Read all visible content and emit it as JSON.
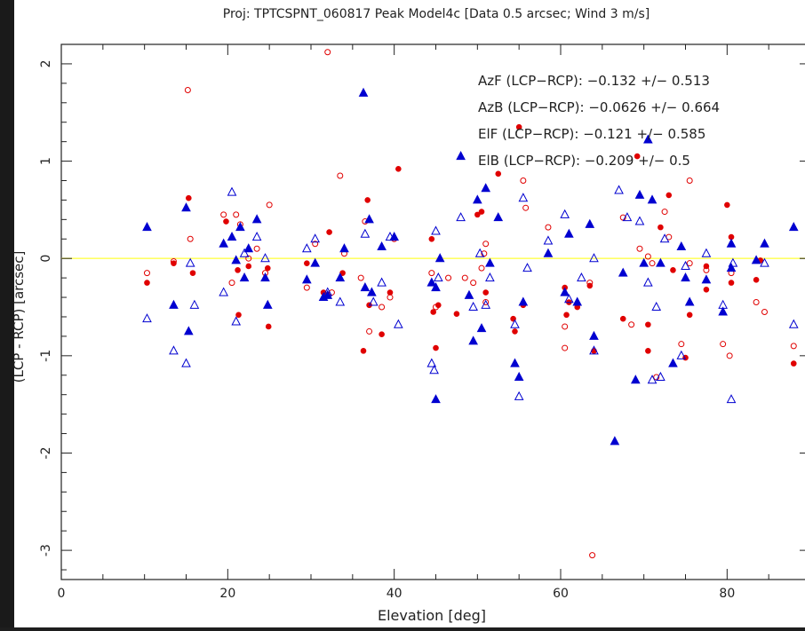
{
  "chart_data": {
    "type": "scatter",
    "title": "Proj: TPTCSPNT_060817   Peak   Model4c [Data 0.5 arcsec; Wind 3 m/s]",
    "xlabel": "Elevation [deg]",
    "ylabel": "(LCP - RCP) [arcsec]",
    "xlim": [
      0,
      90
    ],
    "ylim": [
      -3.3,
      2.2
    ],
    "xticks": [
      0,
      20,
      40,
      60,
      80
    ],
    "yticks": [
      -3,
      -2,
      -1,
      0,
      1,
      2
    ],
    "grid": false,
    "zero_line_color": "#ffff66",
    "annotations": [
      "AzF (LCP−RCP): −0.132 +/− 0.513",
      "AzB (LCP−RCP): −0.0626 +/− 0.664",
      "ElF (LCP−RCP): −0.121 +/− 0.585",
      "ElB (LCP−RCP): −0.209 +/− 0.5"
    ],
    "series": [
      {
        "marker": "filled-circle",
        "color": "#e00000",
        "points": [
          [
            10.3,
            -0.25
          ],
          [
            13.5,
            -0.05
          ],
          [
            15.3,
            0.62
          ],
          [
            15.8,
            -0.15
          ],
          [
            19.8,
            0.38
          ],
          [
            21.2,
            -0.12
          ],
          [
            21.3,
            -0.58
          ],
          [
            22.5,
            -0.08
          ],
          [
            24.8,
            -0.1
          ],
          [
            24.9,
            -0.7
          ],
          [
            29.5,
            -0.05
          ],
          [
            31.5,
            -0.35
          ],
          [
            32.2,
            0.27
          ],
          [
            33.8,
            -0.15
          ],
          [
            36.3,
            -0.95
          ],
          [
            36.8,
            0.6
          ],
          [
            37.0,
            -0.48
          ],
          [
            38.5,
            -0.78
          ],
          [
            39.5,
            -0.35
          ],
          [
            40.5,
            0.92
          ],
          [
            44.5,
            0.2
          ],
          [
            44.7,
            -0.55
          ],
          [
            45.0,
            -0.92
          ],
          [
            45.3,
            -0.48
          ],
          [
            47.5,
            -0.57
          ],
          [
            50.0,
            0.45
          ],
          [
            50.5,
            0.48
          ],
          [
            51.0,
            -0.35
          ],
          [
            52.5,
            0.87
          ],
          [
            54.3,
            -0.62
          ],
          [
            54.5,
            -0.75
          ],
          [
            55.0,
            1.35
          ],
          [
            55.5,
            -0.48
          ],
          [
            60.5,
            -0.3
          ],
          [
            60.7,
            -0.58
          ],
          [
            61.0,
            -0.45
          ],
          [
            62.0,
            -0.5
          ],
          [
            63.5,
            -0.28
          ],
          [
            64.0,
            -0.95
          ],
          [
            67.5,
            -0.62
          ],
          [
            69.2,
            1.05
          ],
          [
            70.5,
            -0.68
          ],
          [
            70.5,
            -0.95
          ],
          [
            72.0,
            0.32
          ],
          [
            73.0,
            0.65
          ],
          [
            73.5,
            -0.12
          ],
          [
            75.0,
            -1.02
          ],
          [
            75.5,
            -0.58
          ],
          [
            77.5,
            -0.08
          ],
          [
            77.5,
            -0.32
          ],
          [
            80.0,
            0.55
          ],
          [
            80.5,
            0.22
          ],
          [
            80.5,
            -0.25
          ],
          [
            83.5,
            -0.22
          ],
          [
            84.0,
            -0.02
          ],
          [
            88.0,
            -1.08
          ]
        ]
      },
      {
        "marker": "open-circle",
        "color": "#e00000",
        "points": [
          [
            10.3,
            -0.15
          ],
          [
            13.5,
            -0.03
          ],
          [
            15.2,
            1.73
          ],
          [
            15.5,
            0.2
          ],
          [
            19.5,
            0.45
          ],
          [
            20.5,
            -0.25
          ],
          [
            21.0,
            0.45
          ],
          [
            21.5,
            0.35
          ],
          [
            22.5,
            0.0
          ],
          [
            23.5,
            0.1
          ],
          [
            24.5,
            -0.15
          ],
          [
            25.0,
            0.55
          ],
          [
            29.5,
            -0.3
          ],
          [
            30.5,
            0.15
          ],
          [
            32.0,
            2.12
          ],
          [
            32.5,
            -0.35
          ],
          [
            33.5,
            0.85
          ],
          [
            34.0,
            0.05
          ],
          [
            36.0,
            -0.2
          ],
          [
            36.5,
            0.38
          ],
          [
            37.0,
            -0.75
          ],
          [
            38.5,
            -0.5
          ],
          [
            39.5,
            -0.4
          ],
          [
            40.0,
            0.2
          ],
          [
            44.5,
            -0.15
          ],
          [
            45.0,
            -0.5
          ],
          [
            46.5,
            -0.2
          ],
          [
            48.5,
            -0.2
          ],
          [
            49.5,
            -0.25
          ],
          [
            50.5,
            -0.1
          ],
          [
            50.8,
            0.05
          ],
          [
            51.0,
            0.15
          ],
          [
            51.0,
            -0.45
          ],
          [
            55.5,
            0.8
          ],
          [
            55.8,
            0.52
          ],
          [
            58.5,
            0.32
          ],
          [
            60.5,
            -0.7
          ],
          [
            60.5,
            -0.92
          ],
          [
            63.5,
            -0.25
          ],
          [
            63.8,
            -3.05
          ],
          [
            67.5,
            0.42
          ],
          [
            68.5,
            -0.68
          ],
          [
            69.5,
            0.1
          ],
          [
            70.5,
            0.02
          ],
          [
            71.0,
            -0.05
          ],
          [
            71.5,
            -1.22
          ],
          [
            72.5,
            0.48
          ],
          [
            73.0,
            0.22
          ],
          [
            74.5,
            -0.88
          ],
          [
            75.5,
            0.8
          ],
          [
            75.5,
            -0.05
          ],
          [
            77.5,
            -0.12
          ],
          [
            79.5,
            -0.88
          ],
          [
            80.3,
            -1.0
          ],
          [
            80.5,
            -0.15
          ],
          [
            83.5,
            -0.45
          ],
          [
            84.5,
            -0.55
          ],
          [
            88.0,
            -0.9
          ]
        ]
      },
      {
        "marker": "filled-triangle",
        "color": "#0000d0",
        "points": [
          [
            10.3,
            0.32
          ],
          [
            13.5,
            -0.48
          ],
          [
            15.0,
            0.52
          ],
          [
            15.3,
            -0.75
          ],
          [
            19.5,
            0.15
          ],
          [
            20.5,
            0.22
          ],
          [
            21.0,
            -0.02
          ],
          [
            21.5,
            0.32
          ],
          [
            22.0,
            -0.2
          ],
          [
            22.5,
            0.1
          ],
          [
            23.5,
            0.4
          ],
          [
            24.5,
            -0.2
          ],
          [
            24.8,
            -0.48
          ],
          [
            29.5,
            -0.22
          ],
          [
            30.5,
            -0.05
          ],
          [
            31.5,
            -0.4
          ],
          [
            32.0,
            -0.38
          ],
          [
            33.5,
            -0.2
          ],
          [
            34.0,
            0.1
          ],
          [
            36.3,
            1.7
          ],
          [
            36.5,
            -0.3
          ],
          [
            37.0,
            0.4
          ],
          [
            37.3,
            -0.35
          ],
          [
            38.5,
            0.12
          ],
          [
            40.0,
            0.22
          ],
          [
            44.5,
            -0.25
          ],
          [
            45.0,
            -1.45
          ],
          [
            45.0,
            -0.3
          ],
          [
            45.5,
            0.0
          ],
          [
            48.0,
            1.05
          ],
          [
            49.0,
            -0.38
          ],
          [
            49.5,
            -0.85
          ],
          [
            50.0,
            0.6
          ],
          [
            50.5,
            -0.72
          ],
          [
            51.0,
            0.72
          ],
          [
            51.5,
            -0.05
          ],
          [
            52.5,
            0.42
          ],
          [
            54.5,
            -1.08
          ],
          [
            55.0,
            -1.22
          ],
          [
            55.5,
            -0.45
          ],
          [
            58.5,
            0.05
          ],
          [
            60.5,
            -0.35
          ],
          [
            61.0,
            0.25
          ],
          [
            62.0,
            -0.45
          ],
          [
            63.5,
            0.35
          ],
          [
            64.0,
            -0.8
          ],
          [
            66.5,
            -1.88
          ],
          [
            67.5,
            -0.15
          ],
          [
            69.0,
            -1.25
          ],
          [
            69.5,
            0.65
          ],
          [
            70.0,
            -0.05
          ],
          [
            70.5,
            1.22
          ],
          [
            71.0,
            0.6
          ],
          [
            72.0,
            -0.05
          ],
          [
            73.5,
            -1.08
          ],
          [
            74.5,
            0.12
          ],
          [
            75.0,
            -0.2
          ],
          [
            75.5,
            -0.45
          ],
          [
            77.5,
            -0.22
          ],
          [
            79.5,
            -0.55
          ],
          [
            80.5,
            0.15
          ],
          [
            80.5,
            -0.1
          ],
          [
            83.5,
            -0.02
          ],
          [
            84.5,
            0.15
          ],
          [
            88.0,
            0.32
          ]
        ]
      },
      {
        "marker": "open-triangle",
        "color": "#0000d0",
        "points": [
          [
            10.3,
            -0.62
          ],
          [
            13.5,
            -0.95
          ],
          [
            15.0,
            -1.08
          ],
          [
            15.5,
            -0.05
          ],
          [
            16.0,
            -0.48
          ],
          [
            19.5,
            -0.35
          ],
          [
            20.5,
            0.68
          ],
          [
            21.0,
            -0.65
          ],
          [
            22.0,
            0.05
          ],
          [
            23.5,
            0.22
          ],
          [
            24.5,
            0.0
          ],
          [
            29.5,
            0.1
          ],
          [
            30.5,
            0.2
          ],
          [
            32.0,
            -0.35
          ],
          [
            33.5,
            -0.45
          ],
          [
            36.5,
            0.25
          ],
          [
            37.5,
            -0.45
          ],
          [
            38.5,
            -0.25
          ],
          [
            39.5,
            0.22
          ],
          [
            40.5,
            -0.68
          ],
          [
            44.5,
            -1.08
          ],
          [
            44.8,
            -1.15
          ],
          [
            45.0,
            0.28
          ],
          [
            45.3,
            -0.2
          ],
          [
            48.0,
            0.42
          ],
          [
            49.5,
            -0.5
          ],
          [
            50.3,
            0.05
          ],
          [
            51.0,
            -0.48
          ],
          [
            51.5,
            -0.2
          ],
          [
            54.5,
            -0.68
          ],
          [
            55.0,
            -1.42
          ],
          [
            55.5,
            0.62
          ],
          [
            56.0,
            -0.1
          ],
          [
            58.5,
            0.18
          ],
          [
            60.5,
            0.45
          ],
          [
            61.0,
            -0.42
          ],
          [
            62.5,
            -0.2
          ],
          [
            64.0,
            -0.95
          ],
          [
            64.0,
            0.0
          ],
          [
            67.0,
            0.7
          ],
          [
            68.0,
            0.42
          ],
          [
            69.5,
            0.38
          ],
          [
            70.5,
            -0.25
          ],
          [
            71.0,
            -1.25
          ],
          [
            71.5,
            -0.5
          ],
          [
            72.0,
            -1.22
          ],
          [
            72.5,
            0.2
          ],
          [
            74.5,
            -1.0
          ],
          [
            75.0,
            -0.08
          ],
          [
            77.5,
            0.05
          ],
          [
            79.5,
            -0.48
          ],
          [
            80.5,
            -1.45
          ],
          [
            80.7,
            -0.05
          ],
          [
            84.5,
            -0.05
          ],
          [
            88.0,
            -0.68
          ]
        ]
      }
    ]
  }
}
